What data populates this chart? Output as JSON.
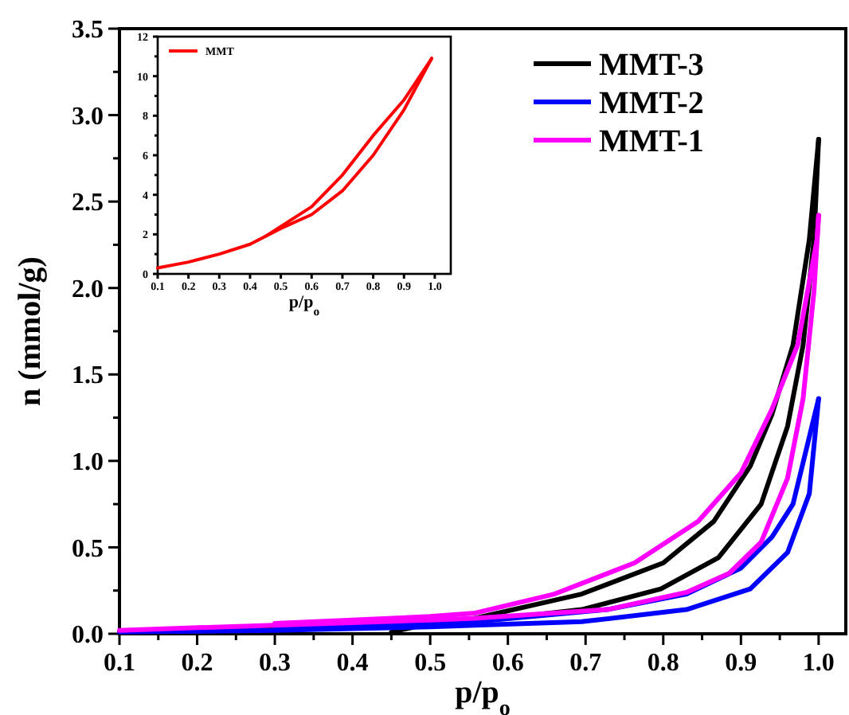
{
  "chart_data": [
    {
      "type": "line",
      "xlabel": "p/p$_{o}$",
      "ylabel": "n (mmol/g)",
      "xlim": [
        0.1,
        1.035
      ],
      "ylim": [
        0,
        3.5
      ],
      "xticks": [
        {
          "value": 0.1,
          "label": "0.1"
        },
        {
          "value": 0.15,
          "label": null
        },
        {
          "value": 0.2,
          "label": "0.2"
        },
        {
          "value": 0.25,
          "label": null
        },
        {
          "value": 0.3,
          "label": "0.3"
        },
        {
          "value": 0.35,
          "label": null
        },
        {
          "value": 0.4,
          "label": "0.4"
        },
        {
          "value": 0.45,
          "label": null
        },
        {
          "value": 0.5,
          "label": "0.5"
        },
        {
          "value": 0.55,
          "label": null
        },
        {
          "value": 0.6,
          "label": "0.6"
        },
        {
          "value": 0.65,
          "label": null
        },
        {
          "value": 0.7,
          "label": "0.7"
        },
        {
          "value": 0.75,
          "label": null
        },
        {
          "value": 0.8,
          "label": "0.8"
        },
        {
          "value": 0.85,
          "label": null
        },
        {
          "value": 0.9,
          "label": "0.9"
        },
        {
          "value": 0.95,
          "label": null
        },
        {
          "value": 1.0,
          "label": "1.0"
        }
      ],
      "yticks": [
        {
          "value": 0,
          "label": "0.0"
        },
        {
          "value": 0.25,
          "label": null
        },
        {
          "value": 0.5,
          "label": "0.5"
        },
        {
          "value": 0.75,
          "label": null
        },
        {
          "value": 1,
          "label": "1.0"
        },
        {
          "value": 1.25,
          "label": null
        },
        {
          "value": 1.5,
          "label": "1.5"
        },
        {
          "value": 1.75,
          "label": null
        },
        {
          "value": 2,
          "label": "2.0"
        },
        {
          "value": 2.25,
          "label": null
        },
        {
          "value": 2.5,
          "label": "2.5"
        },
        {
          "value": 2.75,
          "label": null
        },
        {
          "value": 3,
          "label": "3.0"
        },
        {
          "value": 3.25,
          "label": null
        },
        {
          "value": 3.5,
          "label": "3.5"
        }
      ],
      "legend": "top right",
      "series": [
        {
          "name": "MMT-3",
          "color": "#000000",
          "x": [
            0.1,
            0.2,
            0.3,
            0.4,
            0.5,
            0.558,
            0.695,
            0.797,
            0.871,
            0.926,
            0.96,
            0.98,
            0.994,
            1.0
          ],
          "values": [
            0.01,
            0.02,
            0.03,
            0.04,
            0.06,
            0.07,
            0.14,
            0.26,
            0.44,
            0.75,
            1.2,
            1.67,
            2.28,
            2.86
          ]
        },
        {
          "color": "#000000",
          "x": [
            0.45,
            0.5,
            0.558,
            0.695,
            0.8,
            0.865,
            0.912,
            0.94,
            0.967,
            0.988,
            1.0
          ],
          "values": [
            0.01,
            0.06,
            0.09,
            0.23,
            0.41,
            0.65,
            0.97,
            1.27,
            1.67,
            2.28,
            2.86
          ]
        },
        {
          "name": "MMT-2",
          "color": "#0000ff",
          "x": [
            0.1,
            0.3,
            0.5,
            0.558,
            0.695,
            0.83,
            0.912,
            0.96,
            0.988,
            1.0
          ],
          "values": [
            0.01,
            0.02,
            0.04,
            0.05,
            0.07,
            0.14,
            0.26,
            0.47,
            0.81,
            1.36
          ]
        },
        {
          "color": "#0000ff",
          "x": [
            0.3,
            0.5,
            0.558,
            0.728,
            0.83,
            0.9,
            0.94,
            0.967,
            1.0
          ],
          "values": [
            0.03,
            0.06,
            0.07,
            0.14,
            0.23,
            0.38,
            0.56,
            0.75,
            1.36
          ]
        },
        {
          "name": "MMT-1",
          "color": "#ff00ff",
          "x": [
            0.1,
            0.3,
            0.5,
            0.558,
            0.728,
            0.83,
            0.885,
            0.926,
            0.96,
            0.98,
            0.994,
            1.0
          ],
          "values": [
            0.02,
            0.05,
            0.08,
            0.09,
            0.14,
            0.24,
            0.35,
            0.53,
            0.9,
            1.36,
            1.98,
            2.42
          ]
        },
        {
          "color": "#ff00ff",
          "x": [
            0.3,
            0.5,
            0.558,
            0.66,
            0.763,
            0.845,
            0.9,
            0.94,
            0.973,
            0.998,
            1.0
          ],
          "values": [
            0.06,
            0.1,
            0.12,
            0.23,
            0.41,
            0.65,
            0.93,
            1.3,
            1.67,
            2.28,
            2.42
          ]
        }
      ]
    },
    {
      "type": "line",
      "xlabel": "p/p$_{o}$",
      "xlim": [
        0.1,
        1.052
      ],
      "ylim": [
        0,
        12
      ],
      "xticks": [
        {
          "value": 0.1,
          "label": "0.1"
        },
        {
          "value": 0.2,
          "label": "0.2"
        },
        {
          "value": 0.3,
          "label": "0.3"
        },
        {
          "value": 0.4,
          "label": "0.4"
        },
        {
          "value": 0.5,
          "label": "0.5"
        },
        {
          "value": 0.6,
          "label": "0.6"
        },
        {
          "value": 0.7,
          "label": "0.7"
        },
        {
          "value": 0.8,
          "label": "0.8"
        },
        {
          "value": 0.9,
          "label": "0.9"
        },
        {
          "value": 1.0,
          "label": "1.0"
        }
      ],
      "yticks": [
        0,
        {
          "value": 1,
          "label": null
        },
        2,
        {
          "value": 3,
          "label": null
        },
        4,
        {
          "value": 5,
          "label": null
        },
        6,
        {
          "value": 7,
          "label": null
        },
        8,
        {
          "value": 9,
          "label": null
        },
        10,
        {
          "value": 11,
          "label": null
        },
        12
      ],
      "legend": "top left",
      "series": [
        {
          "name": "MMT",
          "color": "#ff0000",
          "x": [
            0.1,
            0.2,
            0.3,
            0.4,
            0.5,
            0.6,
            0.7,
            0.8,
            0.9,
            0.99
          ],
          "values": [
            0.3,
            0.6,
            1.0,
            1.5,
            2.3,
            3.0,
            4.2,
            6.0,
            8.3,
            10.9
          ]
        },
        {
          "color": "#ff0000",
          "x": [
            0.45,
            0.5,
            0.6,
            0.7,
            0.8,
            0.9,
            0.99
          ],
          "values": [
            1.9,
            2.4,
            3.4,
            5.0,
            7.0,
            8.8,
            10.9
          ]
        }
      ]
    }
  ]
}
